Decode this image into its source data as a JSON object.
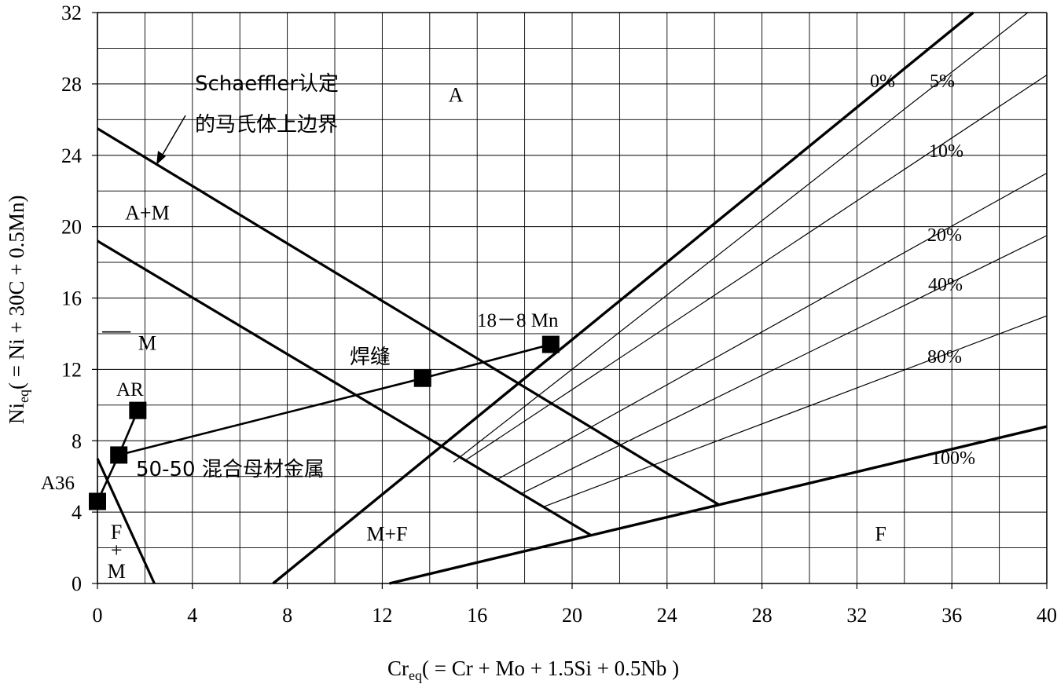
{
  "chart_data": {
    "type": "line",
    "title": "",
    "xlabel": {
      "main": "Cr",
      "sub": "eq",
      "rest": "( = Cr + Mo + 1.5Si + 0.5Nb )"
    },
    "ylabel": {
      "main": "Ni",
      "sub": "eq",
      "rest": "( = Ni + 30C + 0.5Mn)"
    },
    "xlim": [
      0,
      40
    ],
    "ylim": [
      0,
      32
    ],
    "grid": true,
    "x_ticks": [
      {
        "v": 0,
        "label": "0"
      },
      {
        "v": 4,
        "label": "4"
      },
      {
        "v": 8,
        "label": "8"
      },
      {
        "v": 12,
        "label": "12"
      },
      {
        "v": 16,
        "label": "16"
      },
      {
        "v": 20,
        "label": "20"
      },
      {
        "v": 24,
        "label": "24"
      },
      {
        "v": 28,
        "label": "28"
      },
      {
        "v": 32,
        "label": "32"
      },
      {
        "v": 36,
        "label": "36"
      },
      {
        "v": 40,
        "label": "40"
      }
    ],
    "y_ticks": [
      {
        "v": 0,
        "label": "0"
      },
      {
        "v": 4,
        "label": "4"
      },
      {
        "v": 8,
        "label": "8"
      },
      {
        "v": 12,
        "label": "12"
      },
      {
        "v": 16,
        "label": "16"
      },
      {
        "v": 20,
        "label": "20"
      },
      {
        "v": 24,
        "label": "24"
      },
      {
        "v": 28,
        "label": "28"
      },
      {
        "v": 32,
        "label": "32"
      }
    ],
    "boundaries": [
      {
        "kind": "schaeffler-martensite-upper",
        "points": [
          [
            0,
            25.5
          ],
          [
            26.2,
            4.4
          ]
        ]
      },
      {
        "kind": "martensite-upper",
        "points": [
          [
            0,
            19.2
          ],
          [
            20.8,
            2.7
          ]
        ]
      },
      {
        "kind": "af-0pct",
        "points": [
          [
            7.4,
            0
          ],
          [
            36.9,
            32
          ]
        ]
      },
      {
        "kind": "f-100pct",
        "points": [
          [
            12.3,
            0
          ],
          [
            40,
            8.8
          ]
        ]
      },
      {
        "kind": "fm-line",
        "points": [
          [
            0,
            7.0
          ],
          [
            2.4,
            0
          ]
        ]
      }
    ],
    "ferrite_lines": [
      {
        "label": "0%",
        "points": [
          [
            7.4,
            0
          ],
          [
            36.9,
            32
          ]
        ]
      },
      {
        "label": "5%",
        "points": [
          [
            15.0,
            6.8
          ],
          [
            39.2,
            32.0
          ]
        ]
      },
      {
        "label": "10%",
        "points": [
          [
            15.5,
            6.9
          ],
          [
            40,
            28.5
          ]
        ]
      },
      {
        "label": "20%",
        "points": [
          [
            16.8,
            5.8
          ],
          [
            40,
            23.0
          ]
        ]
      },
      {
        "label": "40%",
        "points": [
          [
            17.8,
            5.0
          ],
          [
            40,
            19.5
          ]
        ]
      },
      {
        "label": "80%",
        "points": [
          [
            18.8,
            4.3
          ],
          [
            40,
            15.0
          ]
        ]
      },
      {
        "label": "100%",
        "points": [
          [
            12.3,
            0
          ],
          [
            40,
            8.8
          ]
        ]
      }
    ],
    "series": [
      {
        "name": "焊缝",
        "points": [
          [
            0.9,
            7.2
          ],
          [
            13.7,
            11.5
          ],
          [
            19.1,
            13.4
          ]
        ]
      },
      {
        "name": "50-50 混合母材金属",
        "points": [
          [
            0.0,
            4.6
          ],
          [
            0.9,
            7.2
          ],
          [
            1.7,
            9.7
          ]
        ]
      }
    ],
    "markers": [
      {
        "label": "A36",
        "x": 0.0,
        "y": 4.6
      },
      {
        "label": "",
        "x": 0.9,
        "y": 7.2
      },
      {
        "label": "AR",
        "x": 1.7,
        "y": 9.7
      },
      {
        "label": "",
        "x": 13.7,
        "y": 11.5
      },
      {
        "label": "18－8 Mn",
        "x": 19.1,
        "y": 13.4
      }
    ],
    "regions": [
      {
        "label": "A",
        "x": 15.1,
        "y": 27.4
      },
      {
        "label": "A+M",
        "x": 2.1,
        "y": 20.8
      },
      {
        "label": "M",
        "x": 2.1,
        "y": 13.5
      },
      {
        "label": "M+F",
        "x": 12.2,
        "y": 2.8
      },
      {
        "label": "F",
        "x": 33.0,
        "y": 2.8
      },
      {
        "label": "F",
        "x": 0.8,
        "y": 2.9
      },
      {
        "label": "+",
        "x": 0.8,
        "y": 1.9
      },
      {
        "label": "M",
        "x": 0.8,
        "y": 0.7
      }
    ],
    "annotations": {
      "schaeffler_line1": "Schaeffler认定",
      "schaeffler_line2": "的马氏体上边界",
      "weld": "焊缝",
      "mix": "50-50 混合母材金属"
    }
  }
}
